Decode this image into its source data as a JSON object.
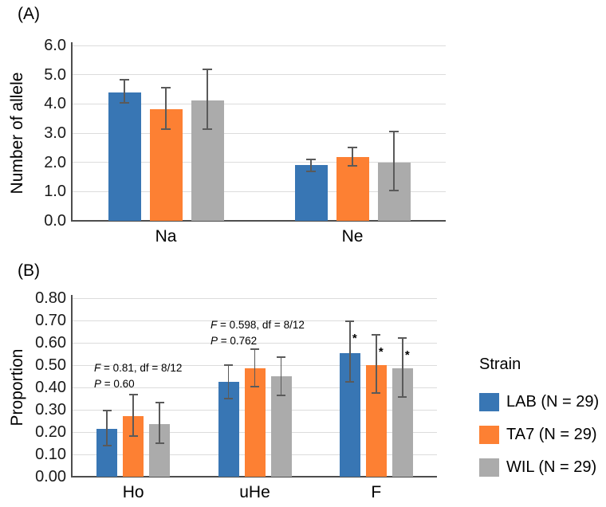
{
  "legend": {
    "title": "Strain",
    "items": [
      {
        "key": "lab",
        "label": "LAB (N = 29)",
        "color": "#3876B4"
      },
      {
        "key": "ta7",
        "label": "TA7 (N = 29)",
        "color": "#FD8033"
      },
      {
        "key": "wil",
        "label": "WIL (N = 29)",
        "color": "#ABABAB"
      }
    ]
  },
  "colors": {
    "grid": "#dcdcdc",
    "axis": "#4d4d4d",
    "error_bar": "#5a5a5a"
  },
  "chart_data": [
    {
      "id": "A",
      "type": "bar",
      "panel_label": "(A)",
      "ylabel": "Number of allele",
      "xlabel": "",
      "ylim": [
        0,
        6
      ],
      "ytick_labels": [
        "0.0",
        "1.0",
        "2.0",
        "3.0",
        "4.0",
        "5.0",
        "6.0"
      ],
      "grid": true,
      "categories": [
        "Na",
        "Ne"
      ],
      "category_keys": [
        "na",
        "ne"
      ],
      "series": [
        {
          "key": "lab",
          "name": "LAB (N = 29)",
          "color": "#3876B4",
          "values": [
            4.4,
            1.9
          ],
          "err_low": [
            4.0,
            1.67
          ],
          "err_high": [
            4.85,
            2.12
          ]
        },
        {
          "key": "ta7",
          "name": "TA7 (N = 29)",
          "color": "#FD8033",
          "values": [
            3.82,
            2.18
          ],
          "err_low": [
            3.1,
            1.85
          ],
          "err_high": [
            4.57,
            2.55
          ]
        },
        {
          "key": "wil",
          "name": "WIL (N = 29)",
          "color": "#ABABAB",
          "values": [
            4.12,
            2.0
          ],
          "err_low": [
            3.1,
            1.0
          ],
          "err_high": [
            5.2,
            3.08
          ]
        }
      ]
    },
    {
      "id": "B",
      "type": "bar",
      "panel_label": "(B)",
      "ylabel": "Proportion",
      "xlabel": "",
      "ylim": [
        0,
        0.8
      ],
      "ytick_labels": [
        "0.00",
        "0.10",
        "0.20",
        "0.30",
        "0.40",
        "0.50",
        "0.60",
        "0.70",
        "0.80"
      ],
      "grid": true,
      "categories": [
        "Ho",
        "uHe",
        "F"
      ],
      "category_keys": [
        "ho",
        "uhe",
        "f"
      ],
      "series": [
        {
          "key": "lab",
          "name": "LAB (N = 29)",
          "color": "#3876B4",
          "values": [
            0.215,
            0.425,
            0.555
          ],
          "err_low": [
            0.135,
            0.345,
            0.42
          ],
          "err_high": [
            0.3,
            0.505,
            0.7
          ]
        },
        {
          "key": "ta7",
          "name": "TA7 (N = 29)",
          "color": "#FD8033",
          "values": [
            0.27,
            0.485,
            0.5
          ],
          "err_low": [
            0.18,
            0.4,
            0.37
          ],
          "err_high": [
            0.37,
            0.575,
            0.64
          ]
        },
        {
          "key": "wil",
          "name": "WIL (N = 29)",
          "color": "#ABABAB",
          "values": [
            0.235,
            0.45,
            0.487
          ],
          "err_low": [
            0.145,
            0.36,
            0.355
          ],
          "err_high": [
            0.335,
            0.54,
            0.625
          ]
        }
      ],
      "annotations": [
        {
          "x": 118,
          "y": 452,
          "lines": [
            {
              "italic": "F",
              "text": " = 0.81, df = 8/12"
            },
            {
              "italic": "P",
              "text": " = 0.60"
            }
          ]
        },
        {
          "x": 264,
          "y": 398,
          "lines": [
            {
              "italic": "F",
              "text": " = 0.598, df = 8/12"
            },
            {
              "italic": "P",
              "text": " = 0.762"
            }
          ]
        }
      ],
      "sig_markers": [
        {
          "series": 0,
          "category": 2,
          "label": "*"
        },
        {
          "series": 1,
          "category": 2,
          "label": "*"
        },
        {
          "series": 2,
          "category": 2,
          "label": "*"
        }
      ]
    }
  ]
}
